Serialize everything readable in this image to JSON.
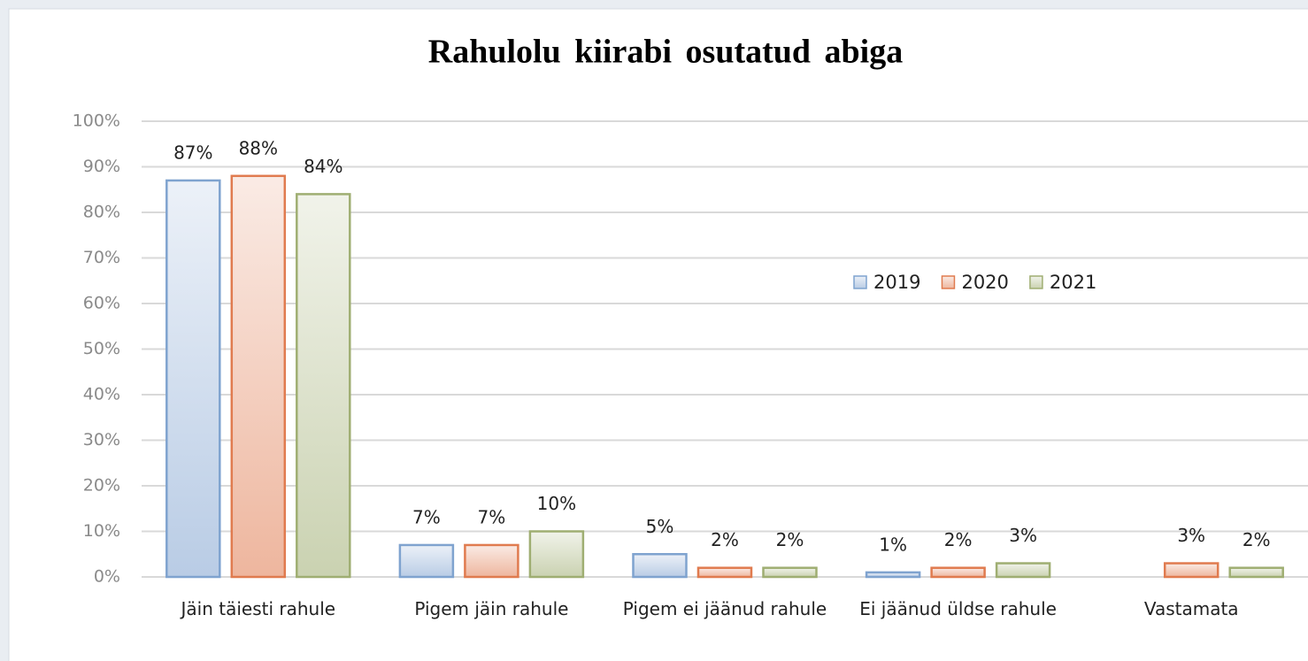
{
  "chart_data": {
    "type": "bar",
    "title": "Rahulolu kiirabi osutatud abiga",
    "categories": [
      "Jäin täiesti rahule",
      "Pigem jäin rahule",
      "Pigem ei jäänud rahule",
      "Ei jäänud üldse rahule",
      "Vastamata"
    ],
    "series": [
      {
        "name": "2019",
        "color": "#7fa3cf",
        "values": [
          87,
          7,
          5,
          1,
          null
        ],
        "value_labels": [
          "87%",
          "7%",
          "5%",
          "1%",
          null
        ]
      },
      {
        "name": "2020",
        "color": "#e07b4f",
        "values": [
          88,
          7,
          2,
          2,
          3
        ],
        "value_labels": [
          "88%",
          "7%",
          "2%",
          "2%",
          "3%"
        ]
      },
      {
        "name": "2021",
        "color": "#9fae72",
        "values": [
          84,
          10,
          2,
          3,
          2
        ],
        "value_labels": [
          "84%",
          "10%",
          "2%",
          "3%",
          "2%"
        ]
      }
    ],
    "ylim": [
      0,
      100
    ],
    "yticks": [
      {
        "value": 0,
        "label": "0%"
      },
      {
        "value": 10,
        "label": "10%"
      },
      {
        "value": 20,
        "label": "20%"
      },
      {
        "value": 30,
        "label": "30%"
      },
      {
        "value": 40,
        "label": "40%"
      },
      {
        "value": 50,
        "label": "50%"
      },
      {
        "value": 60,
        "label": "60%"
      },
      {
        "value": 70,
        "label": "70%"
      },
      {
        "value": 80,
        "label": "80%"
      },
      {
        "value": 90,
        "label": "90%"
      },
      {
        "value": 100,
        "label": "100%"
      }
    ],
    "grid": true
  }
}
